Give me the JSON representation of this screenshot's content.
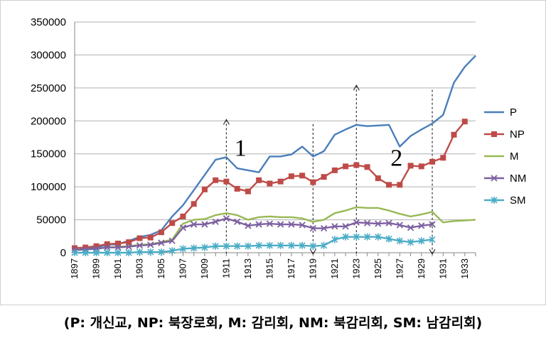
{
  "chart_data": {
    "type": "line",
    "title": "",
    "xlabel": "",
    "ylabel": "",
    "ylim": [
      0,
      350000
    ],
    "yticks": [
      0,
      50000,
      100000,
      150000,
      200000,
      250000,
      300000,
      350000
    ],
    "ytick_labels": [
      "0",
      "50000",
      "100000",
      "150000",
      "200000",
      "250000",
      "300000",
      "350000"
    ],
    "xlim": [
      1897,
      1934
    ],
    "xticks": [
      1897,
      1899,
      1901,
      1903,
      1905,
      1907,
      1909,
      1911,
      1913,
      1915,
      1917,
      1919,
      1921,
      1923,
      1925,
      1927,
      1929,
      1931,
      1933
    ],
    "xtick_labels": [
      "1897",
      "1899",
      "1901",
      "1903",
      "1905",
      "1907",
      "1909",
      "1911",
      "1913",
      "1915",
      "1917",
      "1919",
      "1921",
      "1923",
      "1925",
      "1927",
      "1929",
      "1931",
      "1933"
    ],
    "grid": true,
    "legend": "right",
    "series": [
      {
        "name": "P",
        "color": "#4a7ebb",
        "marker": "none",
        "x": [
          1897,
          1898,
          1899,
          1900,
          1901,
          1902,
          1903,
          1904,
          1905,
          1906,
          1907,
          1908,
          1909,
          1910,
          1911,
          1912,
          1913,
          1914,
          1915,
          1916,
          1917,
          1918,
          1919,
          1920,
          1921,
          1922,
          1923,
          1924,
          1925,
          1926,
          1927,
          1928,
          1929,
          1930,
          1931,
          1932,
          1933,
          1934
        ],
        "y": [
          4000,
          6000,
          8000,
          12000,
          13000,
          18000,
          24000,
          27000,
          34000,
          55000,
          72000,
          95000,
          118000,
          141000,
          145000,
          128000,
          125000,
          122000,
          146000,
          146000,
          149000,
          161000,
          146000,
          154000,
          179000,
          187000,
          194000,
          192000,
          193000,
          194000,
          161000,
          177000,
          187000,
          196000,
          209000,
          258000,
          282000,
          299000
        ]
      },
      {
        "name": "NP",
        "color": "#be4b48",
        "marker": "square",
        "x": [
          1897,
          1898,
          1899,
          1900,
          1901,
          1902,
          1903,
          1904,
          1905,
          1906,
          1907,
          1908,
          1909,
          1910,
          1911,
          1912,
          1913,
          1914,
          1915,
          1916,
          1917,
          1918,
          1919,
          1920,
          1921,
          1922,
          1923,
          1924,
          1925,
          1926,
          1927,
          1928,
          1929,
          1930,
          1931,
          1932,
          1933
        ],
        "y": [
          7000,
          8000,
          10000,
          13000,
          14000,
          16000,
          22000,
          23000,
          31000,
          45000,
          55000,
          74000,
          96000,
          110000,
          108000,
          97000,
          93000,
          110000,
          105000,
          108000,
          116000,
          117000,
          107000,
          115000,
          125000,
          131000,
          133000,
          130000,
          113000,
          103000,
          103000,
          132000,
          131000,
          138000,
          144000,
          179000,
          199000
        ]
      },
      {
        "name": "M",
        "color": "#98b954",
        "marker": "none",
        "x": [
          1897,
          1898,
          1899,
          1900,
          1901,
          1902,
          1903,
          1904,
          1905,
          1906,
          1907,
          1908,
          1909,
          1910,
          1911,
          1912,
          1913,
          1914,
          1915,
          1916,
          1917,
          1918,
          1919,
          1920,
          1921,
          1922,
          1923,
          1924,
          1925,
          1926,
          1927,
          1928,
          1929,
          1930,
          1931,
          1932,
          1933,
          1934
        ],
        "y": [
          4000,
          5000,
          6000,
          8000,
          9000,
          10000,
          12000,
          13000,
          16000,
          20000,
          44000,
          50000,
          51000,
          57000,
          60000,
          57000,
          50000,
          54000,
          55000,
          54000,
          54000,
          52000,
          47000,
          50000,
          60000,
          64000,
          69000,
          68000,
          68000,
          64000,
          59000,
          55000,
          58000,
          62000,
          46000,
          48000,
          49000,
          50000
        ]
      },
      {
        "name": "NM",
        "color": "#7d60a0",
        "marker": "x",
        "x": [
          1897,
          1898,
          1899,
          1900,
          1901,
          1902,
          1903,
          1904,
          1905,
          1906,
          1907,
          1908,
          1909,
          1910,
          1911,
          1912,
          1913,
          1914,
          1915,
          1916,
          1917,
          1918,
          1919,
          1920,
          1921,
          1922,
          1923,
          1924,
          1925,
          1926,
          1927,
          1928,
          1929,
          1930
        ],
        "y": [
          4000,
          5000,
          6000,
          8000,
          8000,
          9000,
          11000,
          12000,
          15000,
          18000,
          38000,
          43000,
          43000,
          47000,
          52000,
          47000,
          41000,
          43000,
          44000,
          43000,
          43000,
          42000,
          37000,
          37000,
          40000,
          40000,
          46000,
          45000,
          44000,
          45000,
          42000,
          38000,
          41000,
          43000
        ]
      },
      {
        "name": "SM",
        "color": "#4bacc6",
        "marker": "star",
        "x": [
          1897,
          1898,
          1899,
          1900,
          1901,
          1902,
          1903,
          1904,
          1905,
          1906,
          1907,
          1908,
          1909,
          1910,
          1911,
          1912,
          1913,
          1914,
          1915,
          1916,
          1917,
          1918,
          1919,
          1920,
          1921,
          1922,
          1923,
          1924,
          1925,
          1926,
          1927,
          1928,
          1929,
          1930
        ],
        "y": [
          0,
          0,
          0,
          0,
          0,
          0,
          1000,
          1000,
          1000,
          3000,
          6000,
          7000,
          8000,
          10000,
          10000,
          10000,
          10000,
          11000,
          11000,
          11000,
          11000,
          11000,
          10000,
          11000,
          20000,
          24000,
          24000,
          24000,
          24000,
          21000,
          18000,
          16000,
          18000,
          20000
        ]
      }
    ],
    "reference_lines": [
      {
        "x": 1911,
        "arrow": "up",
        "top": 202000
      },
      {
        "x": 1919,
        "arrow": "down",
        "top": 195000
      },
      {
        "x": 1923,
        "arrow": "up",
        "top": 254000
      },
      {
        "x": 1930,
        "arrow": "down",
        "top": 247000
      }
    ],
    "annotations": [
      {
        "text": "1",
        "x": 1912.3,
        "y": 147000
      },
      {
        "text": "2",
        "x": 1926.7,
        "y": 132000
      }
    ]
  },
  "caption": "(P: 개신교, NP: 북장로회, M: 감리회, NM: 북감리회, SM: 남감리회)"
}
